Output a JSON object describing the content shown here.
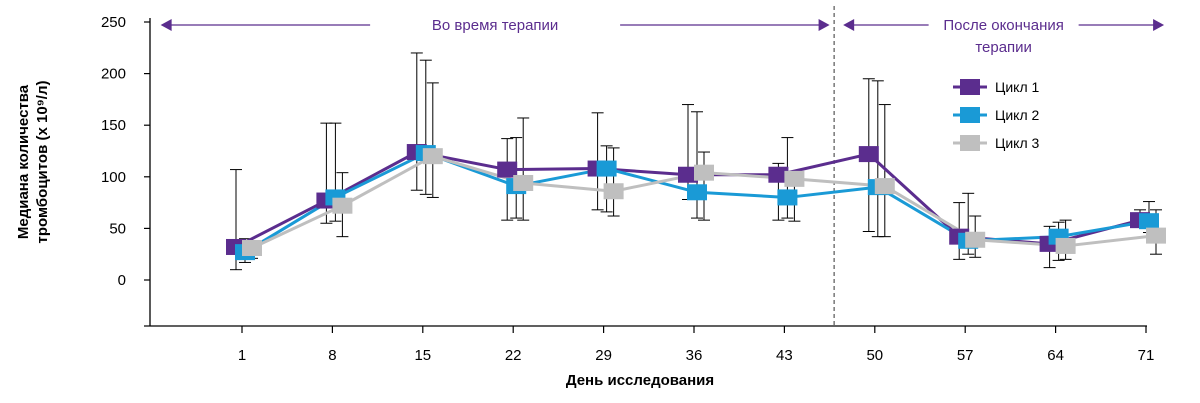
{
  "chart_data": {
    "type": "line",
    "categories": [
      "1",
      "8",
      "15",
      "22",
      "29",
      "36",
      "43",
      "50",
      "57",
      "64",
      "71"
    ],
    "xlabel": "День исследования",
    "ylabel": [
      "Медиана количества",
      "тромбоцитов (х 10⁹/л)"
    ],
    "ylim": [
      -40,
      250
    ],
    "yticks": [
      0,
      50,
      100,
      150,
      200,
      250
    ],
    "grid": false,
    "legend_position": "right",
    "phases": [
      {
        "label": [
          "Во время терапии"
        ],
        "from": -0.9,
        "to": 6.5
      },
      {
        "label": [
          "После окончания",
          "терапии"
        ],
        "from": 6.65,
        "to": 10.2
      }
    ],
    "phase_divider": 6.55,
    "series": [
      {
        "name": "Цикл 1",
        "color": "#5b2d8e",
        "values": [
          32,
          77,
          124,
          107,
          108,
          102,
          102,
          122,
          42,
          35,
          58
        ],
        "err_low": [
          10,
          55,
          87,
          58,
          68,
          78,
          58,
          47,
          20,
          12,
          52
        ],
        "err_high": [
          107,
          152,
          220,
          137,
          162,
          170,
          113,
          195,
          75,
          52,
          68
        ]
      },
      {
        "name": "Цикл 2",
        "color": "#1a9ad6",
        "values": [
          27,
          80,
          123,
          91,
          108,
          85,
          80,
          90,
          38,
          42,
          57
        ],
        "err_low": [
          17,
          57,
          83,
          60,
          66,
          60,
          60,
          42,
          25,
          19,
          46
        ],
        "err_high": [
          40,
          152,
          213,
          138,
          130,
          163,
          138,
          193,
          84,
          56,
          76
        ]
      },
      {
        "name": "Цикл 3",
        "color": "#bfbfbf",
        "values": [
          31,
          72,
          120,
          94,
          86,
          104,
          98,
          91,
          39,
          33,
          43
        ],
        "err_low": [
          21,
          42,
          80,
          58,
          62,
          58,
          57,
          42,
          22,
          20,
          25
        ],
        "err_high": [
          35,
          104,
          191,
          157,
          128,
          124,
          98,
          170,
          62,
          58,
          68
        ]
      }
    ]
  }
}
